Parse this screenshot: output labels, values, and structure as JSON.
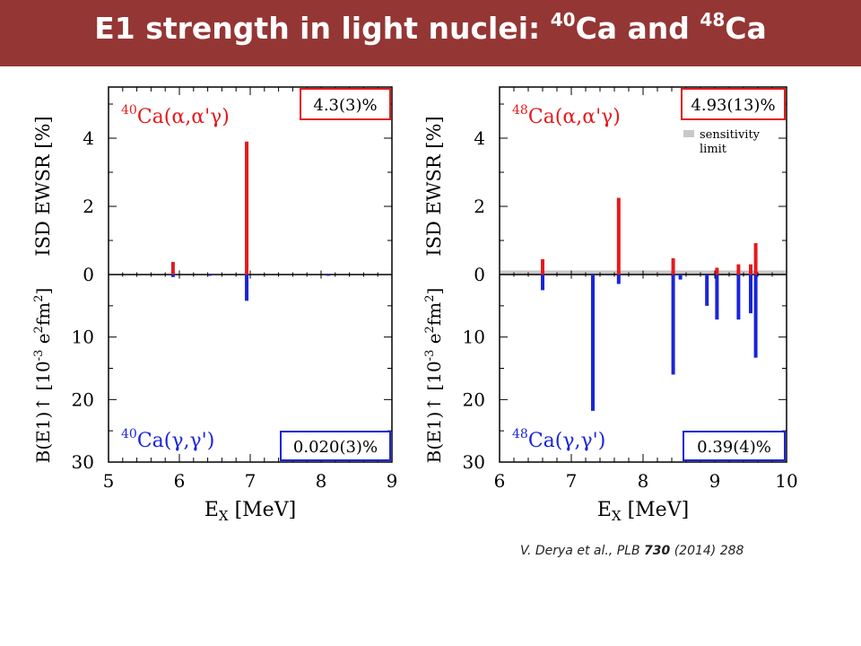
{
  "slide": {
    "title_prefix": "E1 strength in light nuclei: ",
    "title_sup1": "40",
    "title_mid": "Ca and ",
    "title_sup2": "48",
    "title_suffix": "Ca",
    "title_color": "#943634"
  },
  "citation": {
    "authors": "V. Derya et al., ",
    "journal": "PLB ",
    "volume": "730",
    "rest": " (2014) 288"
  },
  "colors": {
    "alpha": "#e41a1c",
    "gamma": "#1a24d8",
    "sensitivity": "#c8c8c8"
  },
  "chart_data": [
    {
      "type": "bar",
      "nucleus_sup": "40",
      "xlabel_main": "E",
      "xlabel_sub": "X",
      "xlabel_unit": " [MeV]",
      "xlim": [
        5,
        9
      ],
      "xticks": [
        5,
        6,
        7,
        8,
        9
      ],
      "top": {
        "ylabel": "ISD EWSR [%]",
        "ylim": [
          0,
          5.5
        ],
        "yticks": [
          0,
          2,
          4
        ],
        "reaction": "Ca(α,α'γ)",
        "box_text": "4.3(3)%",
        "series": [
          {
            "x": 5.91,
            "value": 0.37
          },
          {
            "x": 6.95,
            "value": 3.9
          }
        ]
      },
      "bottom": {
        "ylabel_main": "B(E1)↑ [10",
        "ylabel_exp": "-3",
        "ylabel_mid": " e",
        "ylabel_exp2": "2",
        "ylabel_fm": "fm",
        "ylabel_exp3": "2",
        "ylabel_close": "]",
        "ylim": [
          0,
          30
        ],
        "yticks": [
          10,
          20,
          30
        ],
        "reaction": "Ca(γ,γ')",
        "box_text": "0.020(3)%",
        "series": [
          {
            "x": 5.91,
            "value": 0.4
          },
          {
            "x": 6.43,
            "value": 0.2
          },
          {
            "x": 6.95,
            "value": 4.2
          },
          {
            "x": 8.1,
            "value": 0.2
          }
        ]
      }
    },
    {
      "type": "bar",
      "nucleus_sup": "48",
      "xlabel_main": "E",
      "xlabel_sub": "X",
      "xlabel_unit": " [MeV]",
      "xlim": [
        6,
        10
      ],
      "xticks": [
        6,
        7,
        8,
        9,
        10
      ],
      "legend": [
        "sensitivity",
        "limit"
      ],
      "top": {
        "ylabel": "ISD EWSR [%]",
        "ylim": [
          0,
          5.5
        ],
        "yticks": [
          0,
          2,
          4
        ],
        "reaction": "Ca(α,α'γ)",
        "box_text": "4.93(13)%",
        "sensitivity_level": 0.12,
        "series": [
          {
            "x": 6.6,
            "value": 0.45
          },
          {
            "x": 7.66,
            "value": 2.25
          },
          {
            "x": 8.42,
            "value": 0.48
          },
          {
            "x": 9.03,
            "value": 0.2
          },
          {
            "x": 9.33,
            "value": 0.3
          },
          {
            "x": 9.5,
            "value": 0.3
          },
          {
            "x": 9.57,
            "value": 0.92
          }
        ]
      },
      "bottom": {
        "ylabel_main": "B(E1)↑ [10",
        "ylabel_exp": "-3",
        "ylabel_mid": " e",
        "ylabel_exp2": "2",
        "ylabel_fm": "fm",
        "ylabel_exp3": "2",
        "ylabel_close": "]",
        "ylim": [
          0,
          30
        ],
        "yticks": [
          10,
          20,
          30
        ],
        "reaction": "Ca(γ,γ')",
        "box_text": "0.39(4)%",
        "series": [
          {
            "x": 6.6,
            "value": 2.5
          },
          {
            "x": 7.3,
            "value": 21.8
          },
          {
            "x": 7.66,
            "value": 1.5
          },
          {
            "x": 8.42,
            "value": 16.0
          },
          {
            "x": 8.52,
            "value": 0.8
          },
          {
            "x": 8.89,
            "value": 5.0
          },
          {
            "x": 9.03,
            "value": 7.2
          },
          {
            "x": 9.33,
            "value": 7.2
          },
          {
            "x": 9.5,
            "value": 6.2
          },
          {
            "x": 9.57,
            "value": 13.3
          }
        ]
      }
    }
  ]
}
